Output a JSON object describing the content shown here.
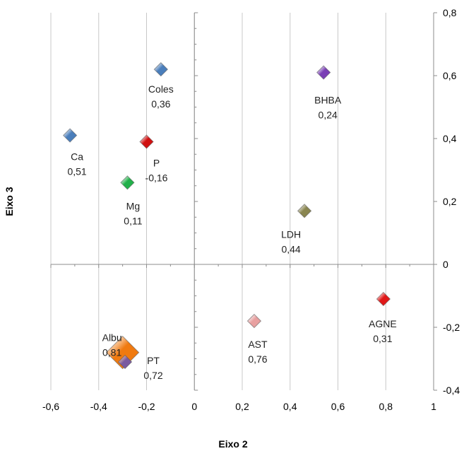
{
  "chart_data": {
    "type": "scatter",
    "title": "",
    "xlabel": "Eixo 2",
    "ylabel": "Eixo 3",
    "xlim": [
      -0.6,
      1.0
    ],
    "ylim": [
      -0.4,
      0.8
    ],
    "x_ticks": [
      "-0,6",
      "-0,4",
      "-0,2",
      "0",
      "0,2",
      "0,4",
      "0,6",
      "0,8",
      "1"
    ],
    "y_ticks": [
      "-0,4",
      "-0,2",
      "0",
      "0,2",
      "0,4",
      "0,6",
      "0,8"
    ],
    "grid": true,
    "points": [
      {
        "name": "Coles",
        "value": "0,36",
        "x": -0.14,
        "y": 0.62,
        "color": "#4a7ebb"
      },
      {
        "name": "BHBA",
        "value": "0,24",
        "x": 0.54,
        "y": 0.61,
        "color": "#7a3fb5"
      },
      {
        "name": "Ca",
        "value": "0,51",
        "x": -0.52,
        "y": 0.41,
        "color": "#4a7ebb"
      },
      {
        "name": "P",
        "value": "-0,16",
        "x": -0.2,
        "y": 0.39,
        "color": "#d01010"
      },
      {
        "name": "Mg",
        "value": "0,11",
        "x": -0.28,
        "y": 0.26,
        "color": "#22b04a"
      },
      {
        "name": "LDH",
        "value": "0,44",
        "x": 0.46,
        "y": 0.17,
        "color": "#8a8650"
      },
      {
        "name": "AGNE",
        "value": "0,31",
        "x": 0.79,
        "y": -0.11,
        "color": "#e01818"
      },
      {
        "name": "AST",
        "value": "0,76",
        "x": 0.25,
        "y": -0.18,
        "color": "#e8a0a0"
      },
      {
        "name": "Albu",
        "value": "0,81",
        "x": -0.3,
        "y": -0.28,
        "color": "#f07a10"
      },
      {
        "name": "PT",
        "value": "0,72",
        "x": -0.29,
        "y": -0.31,
        "color": "#7a5aa0"
      }
    ]
  }
}
